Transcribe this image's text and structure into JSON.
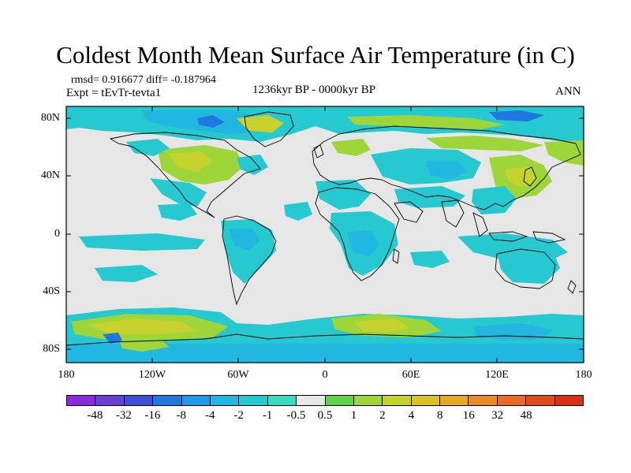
{
  "title": "Coldest Month Mean Surface Air Temperature (in C)",
  "stats": "rmsd= 0.916677  diff= -0.187964",
  "experiment": "Expt = tEvTr-tevta1",
  "period": "1236kyr BP - 0000kyr BP",
  "season": "ANN",
  "y_axis_labels": [
    "80N",
    "40N",
    "0",
    "40S",
    "80S"
  ],
  "x_axis_labels": [
    "180",
    "120W",
    "60W",
    "0",
    "60E",
    "120E",
    "180"
  ],
  "colorbar": {
    "colors": [
      "#8a2be2",
      "#6a3fd6",
      "#3b4fd8",
      "#1f78e0",
      "#1c9ae8",
      "#22b7e0",
      "#26c9cf",
      "#3ad9c0",
      "#e6e6e6",
      "#5fd24a",
      "#9ed63a",
      "#c8d22e",
      "#dcc22a",
      "#e6a828",
      "#e88a28",
      "#e86a24",
      "#e24a1c",
      "#d83014"
    ],
    "labels": [
      "-48",
      "-32",
      "-16",
      "-8",
      "-4",
      "-2",
      "-1",
      "-0.5",
      "0.5",
      "1",
      "2",
      "4",
      "8",
      "16",
      "32",
      "48"
    ]
  },
  "colors": {
    "ocean_background": "#e6e6e6",
    "cool_anomaly": "#26c9cf",
    "cooler_anomaly": "#22b7e0",
    "strong_cool_anomaly": "#1f78e0",
    "warm_anomaly": "#9ed63a",
    "warmer_anomaly": "#c8d22e",
    "strong_warm_anomaly": "#dcc22a"
  }
}
